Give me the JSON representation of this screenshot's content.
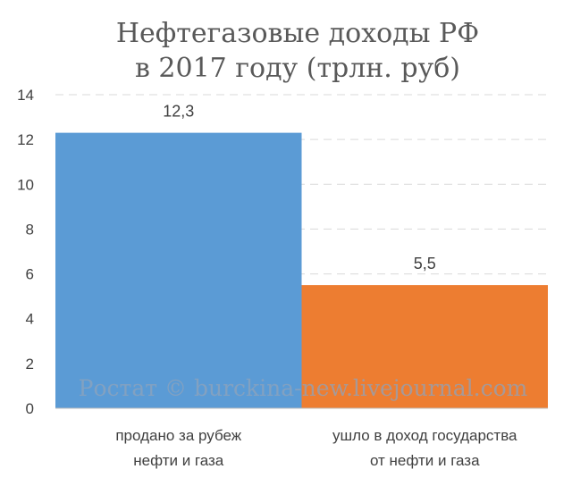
{
  "chart_data": {
    "type": "bar",
    "title": [
      "Нефтегазовые доходы  РФ",
      "в 2017 году (трлн. руб)"
    ],
    "categories": [
      [
        "продано за рубеж",
        "нефти и газа"
      ],
      [
        "ушло в доход государства",
        "от нефти и газа"
      ]
    ],
    "values": [
      12.3,
      5.5
    ],
    "data_labels": [
      "12,3",
      "5,5"
    ],
    "ylim": [
      0,
      14
    ],
    "yticks": [
      0,
      2,
      4,
      6,
      8,
      10,
      12,
      14
    ],
    "grid": true,
    "grid_style": "dashed",
    "legend": "none",
    "colors": [
      "#5b9bd5",
      "#ed7d31"
    ],
    "watermark": "Ростат © burckina-new.livejournal.com"
  }
}
